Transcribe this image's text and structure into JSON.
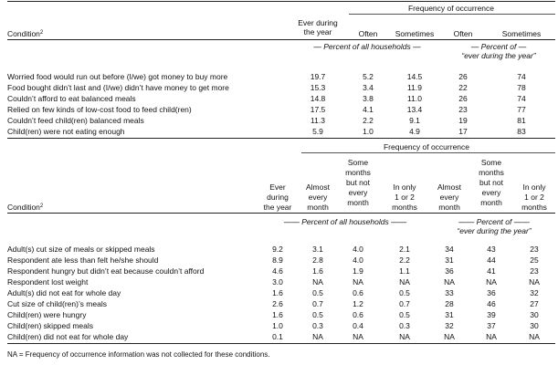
{
  "table1": {
    "header": {
      "condition": "Condition",
      "condition_sup": "2",
      "ever": [
        "Ever during",
        "the year"
      ],
      "freq": "Frequency of occurrence",
      "often": "Often",
      "sometimes": "Sometimes",
      "often2": "Often",
      "sometimes2": "Sometimes",
      "pct_all": "Percent of all households",
      "pct_ever_1": "Percent of",
      "pct_ever_2": "“ever during the year”"
    },
    "rows": [
      {
        "label": "Worried food would run out before (I/we) got money to buy more",
        "ever": "19.7",
        "often": "5.2",
        "some": "14.5",
        "often2": "26",
        "some2": "74"
      },
      {
        "label": "Food bought didn’t last and (I/we) didn’t have money to get more",
        "ever": "15.3",
        "often": "3.4",
        "some": "11.9",
        "often2": "22",
        "some2": "78"
      },
      {
        "label": "Couldn’t afford to eat balanced meals",
        "ever": "14.8",
        "often": "3.8",
        "some": "11.0",
        "often2": "26",
        "some2": "74"
      },
      {
        "label": "Relied on few kinds of low-cost food to feed child(ren)",
        "ever": "17.5",
        "often": "4.1",
        "some": "13.4",
        "often2": "23",
        "some2": "77"
      },
      {
        "label": "Couldn’t feed child(ren) balanced meals",
        "ever": "11.3",
        "often": "2.2",
        "some": "9.1",
        "often2": "19",
        "some2": "81"
      },
      {
        "label": "Child(ren) were not eating enough",
        "ever": "5.9",
        "often": "1.0",
        "some": "4.9",
        "often2": "17",
        "some2": "83"
      }
    ]
  },
  "table2": {
    "header": {
      "condition": "Condition",
      "condition_sup": "2",
      "freq": "Frequency of occurrence",
      "ever": [
        "Ever",
        "during",
        "the year"
      ],
      "almost": [
        "Almost",
        "every",
        "month"
      ],
      "some": [
        "Some",
        "months",
        "but not",
        "every",
        "month"
      ],
      "only": [
        "In only",
        "1 or 2",
        "months"
      ],
      "pct_all": "Percent of all households",
      "pct_ever_1": "Percent of",
      "pct_ever_2": "“ever during the year”"
    },
    "rows": [
      {
        "label": "Adult(s) cut size of meals or skipped meals",
        "ever": "9.2",
        "almost": "3.1",
        "some": "4.0",
        "only": "2.1",
        "almost2": "34",
        "some2": "43",
        "only2": "23"
      },
      {
        "label": "Respondent ate less than felt he/she should",
        "ever": "8.9",
        "almost": "2.8",
        "some": "4.0",
        "only": "2.2",
        "almost2": "31",
        "some2": "44",
        "only2": "25"
      },
      {
        "label": "Respondent hungry but didn’t eat because couldn’t afford",
        "ever": "4.6",
        "almost": "1.6",
        "some": "1.9",
        "only": "1.1",
        "almost2": "36",
        "some2": "41",
        "only2": "23"
      },
      {
        "label": "Respondent lost weight",
        "ever": "3.0",
        "almost": "NA",
        "some": "NA",
        "only": "NA",
        "almost2": "NA",
        "some2": "NA",
        "only2": "NA"
      },
      {
        "label": "Adult(s) did not eat for whole day",
        "ever": "1.6",
        "almost": "0.5",
        "some": "0.6",
        "only": "0.5",
        "almost2": "33",
        "some2": "36",
        "only2": "32"
      },
      {
        "label": "Cut size of child(ren)’s meals",
        "ever": "2.6",
        "almost": "0.7",
        "some": "1.2",
        "only": "0.7",
        "almost2": "28",
        "some2": "46",
        "only2": "27"
      },
      {
        "label": "Child(ren) were hungry",
        "ever": "1.6",
        "almost": "0.5",
        "some": "0.6",
        "only": "0.5",
        "almost2": "31",
        "some2": "39",
        "only2": "30"
      },
      {
        "label": "Child(ren) skipped meals",
        "ever": "1.0",
        "almost": "0.3",
        "some": "0.4",
        "only": "0.3",
        "almost2": "32",
        "some2": "37",
        "only2": "30"
      },
      {
        "label": "Child(ren) did not eat for whole day",
        "ever": "0.1",
        "almost": "NA",
        "some": "NA",
        "only": "NA",
        "almost2": "NA",
        "some2": "NA",
        "only2": "NA"
      }
    ]
  },
  "footnote": "NA = Frequency of occurrence information was not collected for these conditions."
}
